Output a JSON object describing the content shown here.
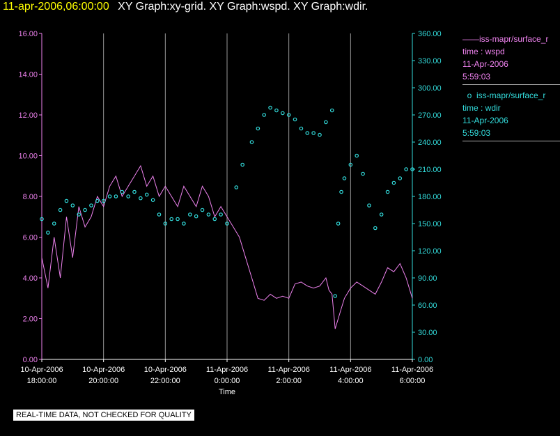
{
  "header": {
    "timestamp": "11-apr-2006,06:00:00",
    "titles": "XY Graph:xy-grid.  XY Graph:wspd.  XY Graph:wdir."
  },
  "legend": {
    "entries": [
      {
        "name": "iss-mapr/surface_r",
        "line1": "time : wspd",
        "line2": "11-Apr-2006",
        "line3": "5:59:03",
        "color": "#ee82ee",
        "symbol": "line"
      },
      {
        "name": "iss-mapr/surface_r",
        "line1": "time : wdir",
        "line2": "11-Apr-2006",
        "line3": "5:59:03",
        "color": "#33dddd",
        "symbol": "circle"
      }
    ]
  },
  "notice": "REAL-TIME DATA, NOT CHECKED FOR QUALITY",
  "chart_data": {
    "type": "line",
    "xlabel": "Time",
    "x_unit": "hours after 10-Apr-2006 18:00:00",
    "x_ticks": [
      {
        "date": "10-Apr-2006",
        "time": "18:00:00",
        "h": 0
      },
      {
        "date": "10-Apr-2006",
        "time": "20:00:00",
        "h": 2
      },
      {
        "date": "10-Apr-2006",
        "time": "22:00:00",
        "h": 4
      },
      {
        "date": "11-Apr-2006",
        "time": "0:00:00",
        "h": 6
      },
      {
        "date": "11-Apr-2006",
        "time": "2:00:00",
        "h": 8
      },
      {
        "date": "11-Apr-2006",
        "time": "4:00:00",
        "h": 10
      },
      {
        "date": "11-Apr-2006",
        "time": "6:00:00",
        "h": 12
      }
    ],
    "xlim": [
      0,
      12
    ],
    "y_left": {
      "ylim": [
        0,
        16
      ],
      "ticks": [
        "0.00",
        "2.00",
        "4.00",
        "6.00",
        "8.00",
        "10.00",
        "12.00",
        "14.00",
        "16.00"
      ],
      "color": "#ee82ee"
    },
    "y_right": {
      "ylim": [
        0,
        360
      ],
      "ticks": [
        "0.00",
        "30.00",
        "60.00",
        "90.00",
        "120.00",
        "150.00",
        "180.00",
        "210.00",
        "240.00",
        "270.00",
        "300.00",
        "330.00",
        "360.00"
      ],
      "color": "#33dddd"
    },
    "grid": "vertical",
    "series": [
      {
        "name": "wspd",
        "axis": "left",
        "style": "line",
        "color": "#ee82ee",
        "x": [
          0.0,
          0.2,
          0.4,
          0.6,
          0.8,
          1.0,
          1.2,
          1.4,
          1.6,
          1.8,
          2.0,
          2.2,
          2.4,
          2.6,
          2.8,
          3.0,
          3.2,
          3.4,
          3.6,
          3.8,
          4.0,
          4.2,
          4.4,
          4.6,
          4.8,
          5.0,
          5.2,
          5.4,
          5.6,
          5.8,
          6.0,
          6.2,
          6.4,
          6.6,
          6.8,
          7.0,
          7.2,
          7.4,
          7.6,
          7.8,
          8.0,
          8.2,
          8.4,
          8.6,
          8.8,
          9.0,
          9.2,
          9.3,
          9.4,
          9.5,
          9.6,
          9.7,
          9.8,
          10.0,
          10.2,
          10.4,
          10.6,
          10.8,
          11.0,
          11.2,
          11.4,
          11.6,
          11.8,
          12.0
        ],
        "values": [
          5.0,
          3.5,
          6.0,
          4.0,
          7.0,
          5.0,
          7.5,
          6.5,
          7.0,
          8.0,
          7.5,
          8.5,
          9.0,
          8.0,
          8.5,
          9.0,
          9.5,
          8.5,
          9.0,
          8.0,
          8.5,
          8.0,
          7.5,
          8.5,
          8.0,
          7.5,
          8.5,
          8.0,
          7.0,
          7.5,
          7.0,
          6.5,
          6.0,
          5.0,
          4.0,
          3.0,
          2.9,
          3.2,
          3.0,
          3.1,
          3.0,
          3.7,
          3.8,
          3.6,
          3.5,
          3.6,
          4.0,
          3.4,
          3.2,
          1.5,
          2.0,
          2.5,
          3.0,
          3.5,
          3.8,
          3.6,
          3.4,
          3.2,
          3.8,
          4.5,
          4.3,
          4.7,
          4.0,
          3.0
        ]
      },
      {
        "name": "wdir",
        "axis": "right",
        "style": "circle",
        "color": "#33dddd",
        "x": [
          0.0,
          0.2,
          0.4,
          0.6,
          0.8,
          1.0,
          1.2,
          1.4,
          1.6,
          1.8,
          2.0,
          2.2,
          2.4,
          2.6,
          2.8,
          3.0,
          3.2,
          3.4,
          3.6,
          3.8,
          4.0,
          4.2,
          4.4,
          4.6,
          4.8,
          5.0,
          5.2,
          5.4,
          5.6,
          5.8,
          6.0,
          6.3,
          6.5,
          6.8,
          7.0,
          7.2,
          7.4,
          7.6,
          7.8,
          8.0,
          8.2,
          8.4,
          8.6,
          8.8,
          9.0,
          9.2,
          9.4,
          9.5,
          9.6,
          9.7,
          9.8,
          10.0,
          10.2,
          10.4,
          10.6,
          10.8,
          11.0,
          11.2,
          11.4,
          11.6,
          11.8,
          12.0
        ],
        "values": [
          155,
          140,
          150,
          165,
          175,
          170,
          160,
          165,
          170,
          175,
          175,
          180,
          180,
          185,
          180,
          185,
          178,
          182,
          176,
          160,
          150,
          155,
          155,
          150,
          160,
          158,
          165,
          160,
          155,
          160,
          150,
          190,
          215,
          240,
          255,
          270,
          278,
          275,
          272,
          270,
          265,
          255,
          250,
          250,
          248,
          262,
          275,
          70,
          150,
          185,
          200,
          215,
          225,
          205,
          170,
          145,
          160,
          185,
          195,
          200,
          210,
          210
        ]
      }
    ]
  }
}
